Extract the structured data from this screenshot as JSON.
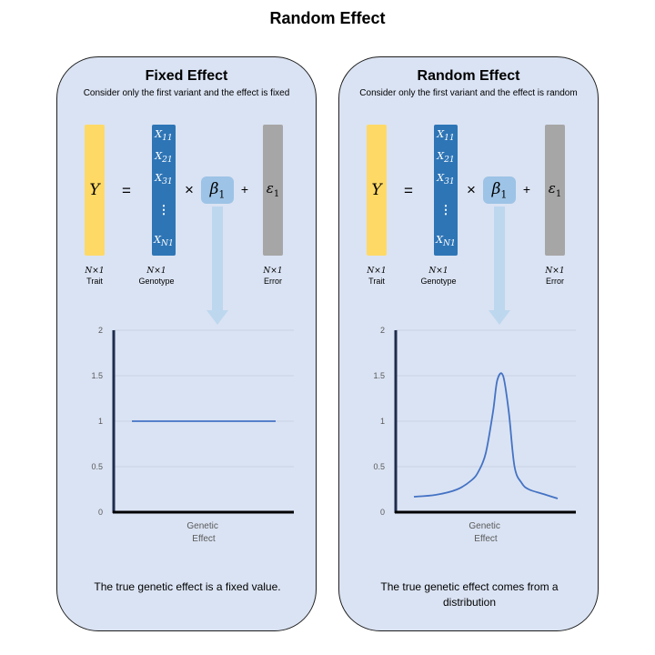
{
  "title": "Random Effect",
  "panels": [
    {
      "title": "Fixed Effect",
      "subtitle": "Consider only the first variant and the effect is fixed",
      "equation": {
        "y": "Y",
        "equals": "=",
        "times": "×",
        "beta": "β",
        "beta_sub": "1",
        "plus": "+",
        "epsilon": "ε",
        "epsilon_sub": "1",
        "genotypes": [
          {
            "var": "X",
            "sub": "11"
          },
          {
            "var": "X",
            "sub": "21"
          },
          {
            "var": "X",
            "sub": "31"
          },
          {
            "var": "⋮",
            "sub": ""
          },
          {
            "var": "X",
            "sub": "N1"
          }
        ]
      },
      "dims": [
        {
          "dim": "N×1",
          "label": "Trait"
        },
        {
          "dim": "N×1",
          "label": "Genotype"
        },
        {
          "dim": "N×1",
          "label": "Error"
        }
      ],
      "chart_data": {
        "type": "line",
        "xlabel": "Genetic Effect",
        "ylabel": "",
        "ylim": [
          0,
          2
        ],
        "yticks": [
          "0",
          "0.5",
          "1",
          "1.5",
          "2"
        ],
        "grid": true,
        "x": [
          0,
          1
        ],
        "y": [
          1,
          1
        ],
        "color": "#4472c4"
      },
      "caption": "The true genetic effect is a fixed value."
    },
    {
      "title": "Random Effect",
      "subtitle": "Consider only the first variant and the effect is random",
      "equation": {
        "y": "Y",
        "equals": "=",
        "times": "×",
        "beta": "β",
        "beta_sub": "1",
        "plus": "+",
        "epsilon": "ε",
        "epsilon_sub": "1",
        "genotypes": [
          {
            "var": "X",
            "sub": "11"
          },
          {
            "var": "X",
            "sub": "21"
          },
          {
            "var": "X",
            "sub": "31"
          },
          {
            "var": "⋮",
            "sub": ""
          },
          {
            "var": "X",
            "sub": "N1"
          }
        ]
      },
      "dims": [
        {
          "dim": "N×1",
          "label": "Trait"
        },
        {
          "dim": "N×1",
          "label": "Genotype"
        },
        {
          "dim": "N×1",
          "label": "Error"
        }
      ],
      "chart_data": {
        "type": "line",
        "xlabel": "Genetic Effect",
        "ylabel": "",
        "ylim": [
          0,
          2
        ],
        "yticks": [
          "0",
          "0.5",
          "1",
          "1.5",
          "2"
        ],
        "grid": true,
        "x": [
          0,
          0.15,
          0.3,
          0.4,
          0.45,
          0.5,
          0.55,
          0.58,
          0.62,
          0.66,
          0.7,
          0.75,
          0.8,
          0.9,
          1.0
        ],
        "y": [
          0.17,
          0.19,
          0.25,
          0.35,
          0.45,
          0.65,
          1.1,
          1.45,
          1.5,
          1.1,
          0.5,
          0.32,
          0.25,
          0.2,
          0.15
        ],
        "color": "#4472c4"
      },
      "caption": "The true genetic effect comes from a distribution"
    }
  ]
}
